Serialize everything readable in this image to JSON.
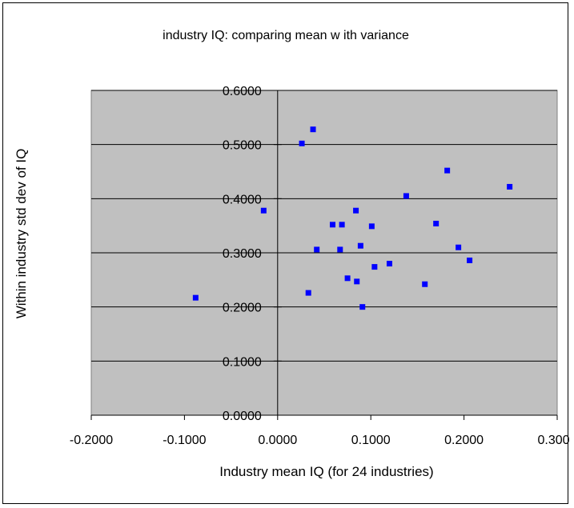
{
  "chart_data": {
    "type": "scatter",
    "title": "industry IQ:  comparing mean w ith variance",
    "xlabel": "Industry mean IQ (for 24 industries)",
    "ylabel": "Within industry std dev of IQ",
    "xlim": [
      -0.2,
      0.3
    ],
    "ylim": [
      0.0,
      0.6
    ],
    "xticks": [
      "-0.2000",
      "-0.1000",
      "0.0000",
      "0.1000",
      "0.2000",
      "0.3000"
    ],
    "yticks": [
      "0.0000",
      "0.1000",
      "0.2000",
      "0.3000",
      "0.4000",
      "0.5000",
      "0.6000"
    ],
    "grid": "horizontal",
    "plot_background": "#c0c0c0",
    "marker_color": "#0000ff",
    "legend": "none",
    "points": [
      {
        "x": -0.088,
        "y": 0.217
      },
      {
        "x": -0.015,
        "y": 0.378
      },
      {
        "x": 0.026,
        "y": 0.502
      },
      {
        "x": 0.038,
        "y": 0.528
      },
      {
        "x": 0.033,
        "y": 0.226
      },
      {
        "x": 0.042,
        "y": 0.306
      },
      {
        "x": 0.059,
        "y": 0.352
      },
      {
        "x": 0.067,
        "y": 0.306
      },
      {
        "x": 0.069,
        "y": 0.352
      },
      {
        "x": 0.075,
        "y": 0.253
      },
      {
        "x": 0.084,
        "y": 0.378
      },
      {
        "x": 0.085,
        "y": 0.247
      },
      {
        "x": 0.089,
        "y": 0.313
      },
      {
        "x": 0.091,
        "y": 0.2
      },
      {
        "x": 0.101,
        "y": 0.349
      },
      {
        "x": 0.104,
        "y": 0.274
      },
      {
        "x": 0.12,
        "y": 0.28
      },
      {
        "x": 0.138,
        "y": 0.405
      },
      {
        "x": 0.158,
        "y": 0.242
      },
      {
        "x": 0.17,
        "y": 0.354
      },
      {
        "x": 0.182,
        "y": 0.452
      },
      {
        "x": 0.194,
        "y": 0.31
      },
      {
        "x": 0.206,
        "y": 0.286
      },
      {
        "x": 0.249,
        "y": 0.422
      }
    ]
  }
}
